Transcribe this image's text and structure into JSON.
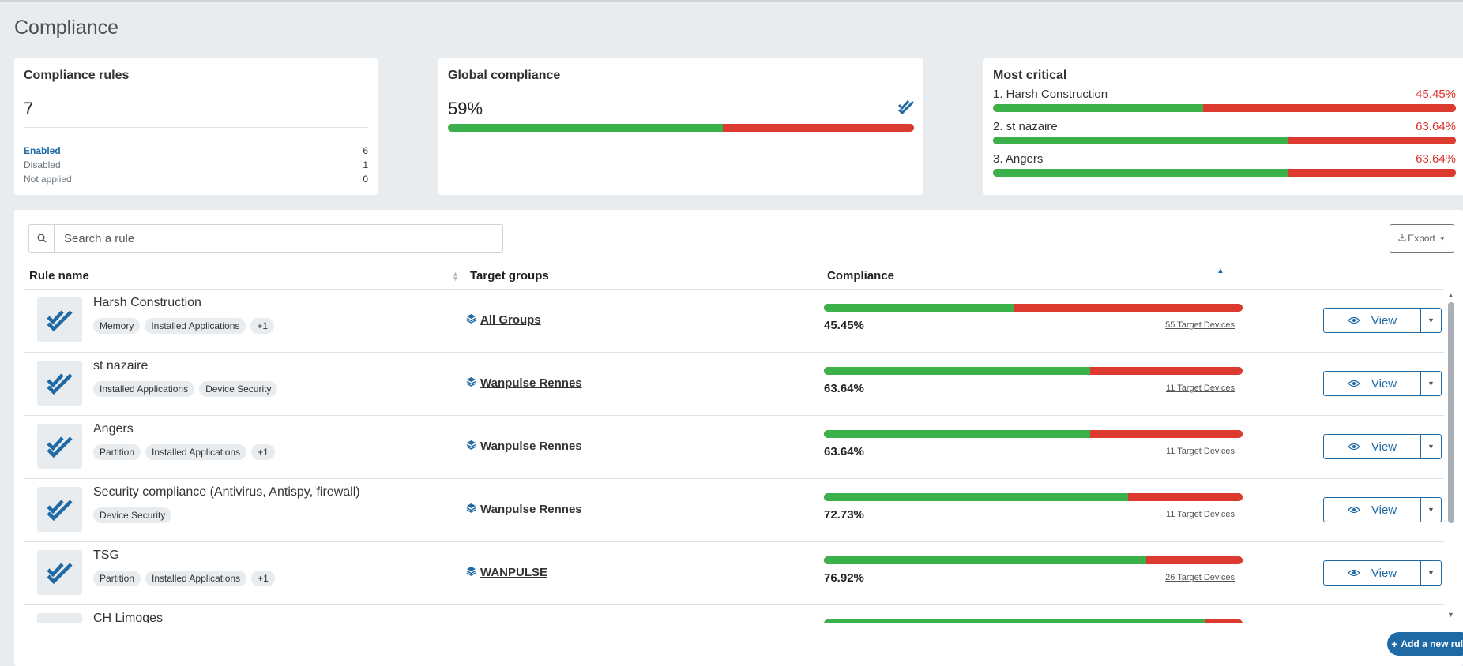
{
  "page": {
    "title": "Compliance"
  },
  "colors": {
    "accent": "#1f6aa5",
    "compliant": "#3cb04a",
    "noncompliant": "#dc3a2f"
  },
  "rules_card": {
    "title": "Compliance rules",
    "total": "7",
    "stats": [
      {
        "label": "Enabled",
        "value": "6"
      },
      {
        "label": "Disabled",
        "value": "1"
      },
      {
        "label": "Not applied",
        "value": "0"
      }
    ]
  },
  "global_card": {
    "title": "Global compliance",
    "percent": "59%",
    "fraction": 0.59,
    "icon": "double-check-icon"
  },
  "critical_card": {
    "title": "Most critical",
    "items": [
      {
        "label": "1. Harsh Construction",
        "value": "45.45%",
        "fraction": 0.4545
      },
      {
        "label": "2. st nazaire",
        "value": "63.64%",
        "fraction": 0.6364
      },
      {
        "label": "3. Angers",
        "value": "63.64%",
        "fraction": 0.6364
      }
    ]
  },
  "search": {
    "placeholder": "Search a rule",
    "value": ""
  },
  "export": {
    "label": "Export"
  },
  "table": {
    "headers": {
      "rule_name": "Rule name",
      "target_groups": "Target groups",
      "compliance": "Compliance"
    },
    "rows": [
      {
        "name": "Harsh Construction",
        "tags": [
          "Memory",
          "Installed Applications",
          "+1"
        ],
        "target": "All Groups",
        "percent": "45.45%",
        "fraction": 0.4545,
        "devices": "55 Target Devices",
        "action": "View"
      },
      {
        "name": "st nazaire",
        "tags": [
          "Installed Applications",
          "Device Security"
        ],
        "target": "Wanpulse Rennes",
        "percent": "63.64%",
        "fraction": 0.6364,
        "devices": "11 Target Devices",
        "action": "View"
      },
      {
        "name": "Angers",
        "tags": [
          "Partition",
          "Installed Applications",
          "+1"
        ],
        "target": "Wanpulse Rennes",
        "percent": "63.64%",
        "fraction": 0.6364,
        "devices": "11 Target Devices",
        "action": "View"
      },
      {
        "name": "Security compliance (Antivirus, Antispy, firewall)",
        "tags": [
          "Device Security"
        ],
        "target": "Wanpulse Rennes",
        "percent": "72.73%",
        "fraction": 0.7273,
        "devices": "11 Target Devices",
        "action": "View"
      },
      {
        "name": "TSG",
        "tags": [
          "Partition",
          "Installed Applications",
          "+1"
        ],
        "target": "WANPULSE",
        "percent": "76.92%",
        "fraction": 0.7692,
        "devices": "26 Target Devices",
        "action": "View"
      },
      {
        "name": "CH Limoges",
        "tags": [],
        "target": "",
        "percent": "",
        "fraction": 0.91,
        "devices": "",
        "action": ""
      }
    ]
  },
  "add_rule": {
    "label": "Add a new rule"
  }
}
